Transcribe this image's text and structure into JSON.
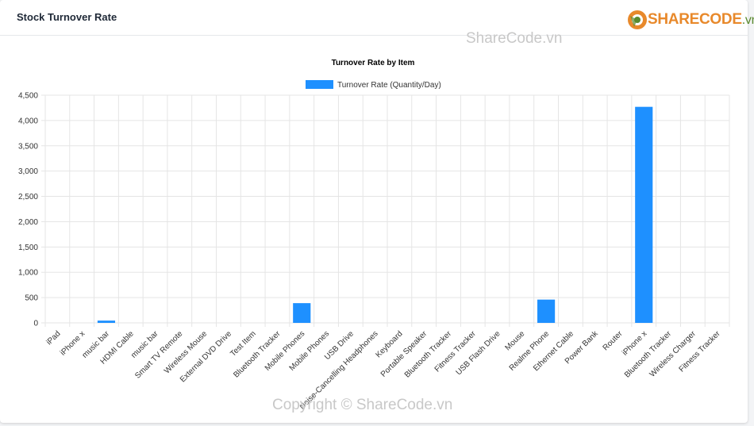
{
  "header": {
    "title": "Stock Turnover Rate"
  },
  "logo": {
    "brand_main": "SHARECODE",
    "brand_suffix": ".vn",
    "icon": "sharecode-logo-icon"
  },
  "watermarks": {
    "top": "ShareCode.vn",
    "bottom": "Copyright © ShareCode.vn"
  },
  "colors": {
    "bar": "#1e90ff",
    "grid": "#e5e5e5",
    "text": "#333333"
  },
  "chart_data": {
    "type": "bar",
    "title": "Turnover Rate by Item",
    "legend": {
      "position": "top",
      "label": "Turnover Rate (Quantity/Day)"
    },
    "categories": [
      "iPad",
      "iPhone x",
      "music bar",
      "HDMI Cable",
      "music bar",
      "Smart TV Remote",
      "Wireless Mouse",
      "External DVD Drive",
      "Test Item",
      "Bluetooth Tracker",
      "Mobile Phones",
      "Mobile Phones",
      "USB Drive",
      "Noise-Cancelling Headphones",
      "Keyboard",
      "Portable Speaker",
      "Bluetooth Tracker",
      "Fitness Tracker",
      "USB Flash Drive",
      "Mouse",
      "Realme Phone",
      "Ethernet Cable",
      "Power Bank",
      "Router",
      "iPhone x",
      "Bluetooth Tracker",
      "Wireless Charger",
      "Fitness Tracker"
    ],
    "series": [
      {
        "name": "Turnover Rate (Quantity/Day)",
        "values": [
          0,
          0,
          45,
          0,
          0,
          0,
          0,
          0,
          0,
          0,
          390,
          0,
          0,
          0,
          0,
          0,
          0,
          0,
          0,
          0,
          460,
          0,
          0,
          0,
          4270,
          0,
          0,
          0
        ]
      }
    ],
    "ylim": [
      0,
      4500
    ],
    "yticks": [
      0,
      500,
      1000,
      1500,
      2000,
      2500,
      3000,
      3500,
      4000,
      4500
    ],
    "ytick_labels": [
      "0",
      "500",
      "1,000",
      "1,500",
      "2,000",
      "2,500",
      "3,000",
      "3,500",
      "4,000",
      "4,500"
    ],
    "grid": true
  }
}
